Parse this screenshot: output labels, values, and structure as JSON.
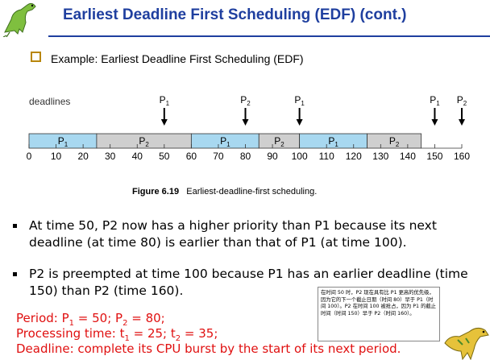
{
  "header": {
    "title": "Earliest Deadline First Scheduling (EDF) (cont.)"
  },
  "example": {
    "text": "Example: Earliest Deadline First Scheduling (EDF)"
  },
  "figure": {
    "deadlines_label": "deadlines",
    "arrows": [
      {
        "p": "P",
        "sub": "1",
        "time": 50
      },
      {
        "p": "P",
        "sub": "2",
        "time": 80
      },
      {
        "p": "P",
        "sub": "1",
        "time": 100
      },
      {
        "p": "P",
        "sub": "1",
        "time": 150
      },
      {
        "p": "P",
        "sub": "2",
        "time": 160
      }
    ],
    "segments": [
      {
        "p": "P",
        "sub": "1",
        "start": 0,
        "end": 25,
        "color": "#a8d8f0"
      },
      {
        "p": "P",
        "sub": "2",
        "start": 25,
        "end": 60,
        "color": "#cfcfcf"
      },
      {
        "p": "P",
        "sub": "1",
        "start": 60,
        "end": 85,
        "color": "#a8d8f0"
      },
      {
        "p": "P",
        "sub": "2",
        "start": 85,
        "end": 100,
        "color": "#cfcfcf"
      },
      {
        "p": "P",
        "sub": "1",
        "start": 100,
        "end": 125,
        "color": "#a8d8f0"
      },
      {
        "p": "P",
        "sub": "2",
        "start": 125,
        "end": 145,
        "color": "#cfcfcf"
      }
    ],
    "ticks": [
      "0",
      "10",
      "20",
      "30",
      "40",
      "50",
      "60",
      "70",
      "80",
      "90",
      "100",
      "110",
      "120",
      "130",
      "140",
      "150",
      "160"
    ],
    "caption_bold": "Figure 6.19",
    "caption_text": "Earliest-deadline-first scheduling."
  },
  "bullets": [
    {
      "text": "At time 50, P2 now has a higher priority than P1 because its next deadline (at time 80) is earlier than that of P1 (at time 100)."
    },
    {
      "text": "P2 is preempted at time 100 because P1 has an earlier deadline (time 150) than P2 (time 160)."
    }
  ],
  "note": {
    "text": "在时间 50 时，P2 现在具有比 P1 更高的优先级，因为它的下一个截止日期（时间 80）早于 P1（时间 100）。P2 在时间 100 被抢占，因为 P1 的截止时间（时间 150）早于 P2（时间 160）。"
  },
  "footer": {
    "period_prefix": "Period: ",
    "p1": "P",
    "p1_sub": "1",
    "p1_val": " = 50; ",
    "p2": "P",
    "p2_sub": "2",
    "p2_val": " = 80;",
    "proc_prefix": "Processing time: ",
    "t1": "t",
    "t1_sub": "1",
    "t1_val": " = 25; ",
    "t2": "t",
    "t2_sub": "2",
    "t2_val": " = 35;",
    "deadline": "Deadline: complete its CPU burst by the start of its next period."
  },
  "colors": {
    "title": "#1f3f9f",
    "red": "#e01010",
    "p1_fill": "#a8d8f0",
    "p2_fill": "#cfcfcf"
  }
}
